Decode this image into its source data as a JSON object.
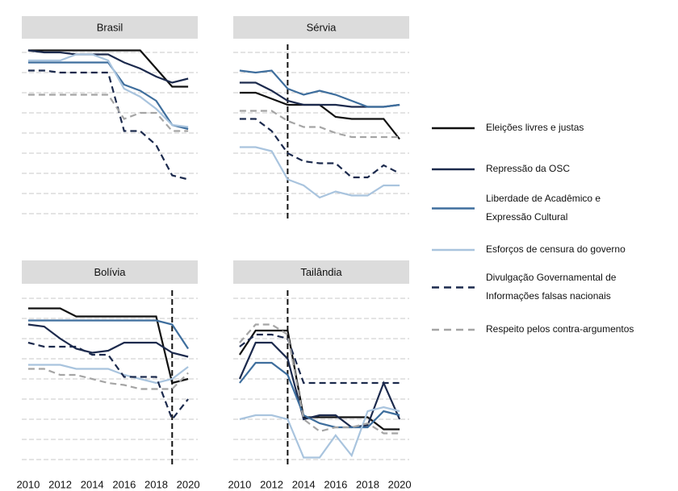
{
  "chart_data": [
    {
      "type": "line",
      "title": "Brasil",
      "x": [
        2010,
        2011,
        2012,
        2013,
        2014,
        2015,
        2016,
        2017,
        2018,
        2019,
        2020
      ],
      "xlim": [
        2009.6,
        2020.6
      ],
      "ylim": [
        0.4,
        9.6
      ],
      "yticks": [
        1,
        2,
        3,
        4,
        5,
        6,
        7,
        8,
        9
      ],
      "grid": true,
      "series": [
        {
          "values": [
            9.1,
            9.1,
            9.1,
            9.1,
            9.1,
            9.1,
            9.1,
            9.1,
            8.2,
            7.3,
            7.3
          ]
        },
        {
          "values": [
            9.1,
            9.0,
            9.0,
            8.9,
            8.9,
            8.9,
            8.5,
            8.2,
            7.8,
            7.5,
            7.7
          ]
        },
        {
          "values": [
            8.5,
            8.5,
            8.5,
            8.5,
            8.5,
            8.5,
            7.4,
            7.1,
            6.6,
            5.4,
            5.2
          ]
        },
        {
          "values": [
            8.6,
            8.6,
            8.6,
            8.9,
            8.9,
            8.6,
            7.2,
            6.8,
            6.2,
            5.4,
            5.3
          ]
        },
        {
          "values": [
            8.1,
            8.1,
            8.0,
            8.0,
            8.0,
            8.0,
            5.1,
            5.1,
            4.4,
            2.9,
            2.7
          ]
        },
        {
          "values": [
            6.9,
            6.9,
            6.9,
            6.9,
            6.9,
            6.9,
            5.7,
            6.0,
            6.0,
            5.1,
            5.1
          ]
        }
      ]
    },
    {
      "type": "line",
      "title": "Sérvia",
      "x": [
        2010,
        2011,
        2012,
        2013,
        2014,
        2015,
        2016,
        2017,
        2018,
        2019,
        2020
      ],
      "xlim": [
        2009.6,
        2020.6
      ],
      "ylim": [
        0.4,
        9.6
      ],
      "yticks": [
        1,
        2,
        3,
        4,
        5,
        6,
        7,
        8,
        9
      ],
      "grid": true,
      "event_x": 2013,
      "series": [
        {
          "values": [
            7.0,
            7.0,
            6.7,
            6.4,
            6.4,
            6.4,
            5.8,
            5.7,
            5.7,
            5.7,
            4.7
          ]
        },
        {
          "values": [
            7.5,
            7.5,
            7.1,
            6.6,
            6.4,
            6.4,
            6.4,
            6.3,
            6.3,
            6.3,
            6.4
          ]
        },
        {
          "values": [
            8.1,
            8.0,
            8.1,
            7.2,
            6.9,
            7.1,
            6.9,
            6.6,
            6.3,
            6.3,
            6.4
          ]
        },
        {
          "values": [
            4.3,
            4.3,
            4.1,
            2.7,
            2.4,
            1.8,
            2.1,
            1.9,
            1.9,
            2.4,
            2.4
          ]
        },
        {
          "values": [
            5.7,
            5.7,
            5.1,
            4.0,
            3.6,
            3.5,
            3.5,
            2.8,
            2.8,
            3.4,
            3.0
          ]
        },
        {
          "values": [
            6.1,
            6.1,
            6.1,
            5.6,
            5.3,
            5.3,
            5.0,
            4.8,
            4.8,
            4.8,
            4.8
          ]
        }
      ]
    },
    {
      "type": "line",
      "title": "Bolívia",
      "x": [
        2010,
        2011,
        2012,
        2013,
        2014,
        2015,
        2016,
        2017,
        2018,
        2019,
        2020
      ],
      "xlim": [
        2009.6,
        2020.6
      ],
      "ylim": [
        0.4,
        9.6
      ],
      "yticks": [
        1,
        2,
        3,
        4,
        5,
        6,
        7,
        8,
        9
      ],
      "xticks": [
        2010,
        2012,
        2014,
        2016,
        2018,
        2020
      ],
      "grid": true,
      "event_x": 2019,
      "series": [
        {
          "values": [
            8.5,
            8.5,
            8.5,
            8.1,
            8.1,
            8.1,
            8.1,
            8.1,
            8.1,
            4.8,
            5.0
          ]
        },
        {
          "values": [
            7.7,
            7.6,
            7.0,
            6.5,
            6.3,
            6.4,
            6.8,
            6.8,
            6.8,
            6.3,
            6.1
          ]
        },
        {
          "values": [
            7.9,
            7.9,
            7.9,
            7.9,
            7.9,
            7.9,
            7.9,
            7.9,
            7.9,
            7.7,
            6.5
          ]
        },
        {
          "values": [
            5.7,
            5.7,
            5.7,
            5.5,
            5.5,
            5.5,
            5.2,
            5.0,
            4.8,
            5.0,
            5.6
          ]
        },
        {
          "values": [
            6.8,
            6.6,
            6.6,
            6.6,
            6.2,
            6.2,
            5.1,
            5.1,
            5.1,
            3.0,
            4.0
          ]
        },
        {
          "values": [
            5.5,
            5.5,
            5.2,
            5.2,
            5.0,
            4.8,
            4.7,
            4.5,
            4.5,
            4.5,
            5.3
          ]
        }
      ]
    },
    {
      "type": "line",
      "title": "Tailândia",
      "x": [
        2010,
        2011,
        2012,
        2013,
        2014,
        2015,
        2016,
        2017,
        2018,
        2019,
        2020
      ],
      "xlim": [
        2009.6,
        2020.6
      ],
      "ylim": [
        0.4,
        9.6
      ],
      "yticks": [
        1,
        2,
        3,
        4,
        5,
        6,
        7,
        8,
        9
      ],
      "xticks": [
        2010,
        2012,
        2014,
        2016,
        2018,
        2020
      ],
      "grid": true,
      "event_x": 2013,
      "series": [
        {
          "values": [
            6.2,
            7.4,
            7.4,
            7.4,
            3.1,
            3.1,
            3.1,
            3.1,
            3.1,
            2.5,
            2.5
          ]
        },
        {
          "values": [
            5.0,
            6.8,
            6.8,
            6.0,
            3.0,
            3.2,
            3.2,
            2.6,
            2.7,
            4.8,
            3.0
          ]
        },
        {
          "values": [
            4.8,
            5.8,
            5.8,
            5.2,
            3.2,
            2.8,
            2.6,
            2.6,
            2.6,
            3.4,
            3.2
          ]
        },
        {
          "values": [
            3.0,
            3.2,
            3.2,
            3.0,
            1.1,
            1.1,
            2.2,
            1.2,
            3.4,
            3.6,
            3.4
          ]
        },
        {
          "values": [
            6.6,
            7.2,
            7.2,
            7.0,
            4.8,
            4.8,
            4.8,
            4.8,
            4.8,
            4.8,
            4.8
          ]
        },
        {
          "values": [
            6.8,
            7.7,
            7.7,
            7.2,
            3.0,
            2.4,
            2.6,
            2.6,
            2.8,
            2.3,
            2.3
          ]
        }
      ]
    }
  ],
  "legend": [
    {
      "lines": [
        "Eleições livres e justas"
      ],
      "color": "#111111",
      "dashed": false
    },
    {
      "lines": [
        "Repressão da OSC"
      ],
      "color": "#1c2a4d",
      "dashed": false
    },
    {
      "lines": [
        "Liberdade de Acadêmico e",
        "Expressão Cultural"
      ],
      "color": "#3e6e9d",
      "dashed": false
    },
    {
      "lines": [
        "Esforços de censura do governo"
      ],
      "color": "#a9c4de",
      "dashed": false
    },
    {
      "lines": [
        "Divulgação Governamental de",
        "Informações falsas nacionais"
      ],
      "color": "#1c2a4d",
      "dashed": true
    },
    {
      "lines": [
        "Respeito pelos contra-argumentos"
      ],
      "color": "#a5a5a5",
      "dashed": true
    }
  ]
}
